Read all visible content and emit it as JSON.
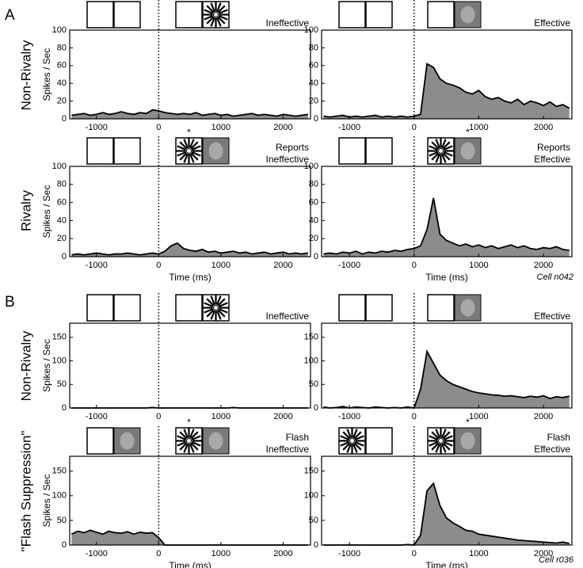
{
  "figure": {
    "sections": [
      {
        "label": "A",
        "rows": [
          "Non-Rivalry",
          "Rivalry"
        ],
        "cell": "Cell n042"
      },
      {
        "label": "B",
        "rows": [
          "Non-Rivalry",
          "\"Flash Suppression\""
        ],
        "cell": "Cell r036"
      }
    ]
  },
  "chart_data": [
    {
      "type": "area",
      "title_lines": [
        "Ineffective"
      ],
      "ylabel": "Spikes / Sec",
      "color": "#8c8c8c",
      "line_color": "#000000",
      "xlim": [
        -1430,
        2440
      ],
      "ylim": [
        0,
        100
      ],
      "xticks": [
        -1000,
        0,
        1000,
        2000
      ],
      "yticks": [
        0,
        20,
        40,
        60,
        80,
        100
      ],
      "x": [
        -1400,
        -1300,
        -1200,
        -1100,
        -1000,
        -900,
        -800,
        -700,
        -600,
        -500,
        -400,
        -300,
        -200,
        -100,
        0,
        100,
        200,
        300,
        400,
        500,
        600,
        700,
        800,
        900,
        1000,
        1100,
        1200,
        1300,
        1400,
        1500,
        1600,
        1700,
        1800,
        1900,
        2000,
        2100,
        2200,
        2300,
        2400
      ],
      "values": [
        4,
        5,
        6,
        4,
        5,
        7,
        5,
        6,
        8,
        6,
        5,
        7,
        6,
        10,
        9,
        7,
        6,
        5,
        6,
        5,
        7,
        4,
        5,
        6,
        4,
        5,
        3,
        4,
        5,
        6,
        4,
        5,
        4,
        3,
        5,
        4,
        3,
        4,
        5
      ]
    },
    {
      "type": "area",
      "title_lines": [
        "Effective"
      ],
      "color": "#8c8c8c",
      "line_color": "#000000",
      "xlim": [
        -1430,
        2440
      ],
      "ylim": [
        0,
        100
      ],
      "xticks": [
        -1000,
        0,
        1000,
        2000
      ],
      "yticks": [
        0,
        20,
        40,
        60,
        80,
        100
      ],
      "x": [
        -1400,
        -1300,
        -1200,
        -1100,
        -1000,
        -900,
        -800,
        -700,
        -600,
        -500,
        -400,
        -300,
        -200,
        -100,
        0,
        100,
        200,
        300,
        400,
        500,
        600,
        700,
        800,
        900,
        1000,
        1100,
        1200,
        1300,
        1400,
        1500,
        1600,
        1700,
        1800,
        1900,
        2000,
        2100,
        2200,
        2300,
        2400
      ],
      "values": [
        3,
        2,
        3,
        4,
        2,
        3,
        2,
        3,
        4,
        2,
        3,
        2,
        3,
        2,
        3,
        5,
        62,
        58,
        45,
        40,
        38,
        35,
        30,
        28,
        32,
        25,
        22,
        24,
        20,
        18,
        22,
        16,
        20,
        18,
        15,
        19,
        14,
        16,
        12
      ]
    },
    {
      "type": "area",
      "title_lines": [
        "Reports",
        "Ineffective"
      ],
      "ylabel": "Spikes / Sec",
      "xlabel": "Time (ms)",
      "star": "*",
      "color": "#8c8c8c",
      "line_color": "#000000",
      "xlim": [
        -1430,
        2440
      ],
      "ylim": [
        0,
        100
      ],
      "xticks": [
        -1000,
        0,
        1000,
        2000
      ],
      "yticks": [
        0,
        20,
        40,
        60,
        80,
        100
      ],
      "x": [
        -1400,
        -1300,
        -1200,
        -1100,
        -1000,
        -900,
        -800,
        -700,
        -600,
        -500,
        -400,
        -300,
        -200,
        -100,
        0,
        100,
        200,
        300,
        400,
        500,
        600,
        700,
        800,
        900,
        1000,
        1100,
        1200,
        1300,
        1400,
        1500,
        1600,
        1700,
        1800,
        1900,
        2000,
        2100,
        2200,
        2300,
        2400
      ],
      "values": [
        2,
        3,
        2,
        3,
        4,
        3,
        2,
        3,
        3,
        4,
        3,
        2,
        3,
        4,
        3,
        6,
        12,
        15,
        9,
        7,
        6,
        8,
        5,
        6,
        4,
        5,
        6,
        4,
        5,
        3,
        4,
        5,
        3,
        4,
        5,
        3,
        4,
        3,
        4
      ]
    },
    {
      "type": "area",
      "title_lines": [
        "Reports",
        "Effective"
      ],
      "xlabel": "Time (ms)",
      "star": "*",
      "color": "#8c8c8c",
      "line_color": "#000000",
      "xlim": [
        -1430,
        2440
      ],
      "ylim": [
        0,
        100
      ],
      "xticks": [
        -1000,
        0,
        1000,
        2000
      ],
      "yticks": [
        0,
        20,
        40,
        60,
        80,
        100
      ],
      "x": [
        -1400,
        -1300,
        -1200,
        -1100,
        -1000,
        -900,
        -800,
        -700,
        -600,
        -500,
        -400,
        -300,
        -200,
        -100,
        0,
        100,
        200,
        300,
        400,
        500,
        600,
        700,
        800,
        900,
        1000,
        1100,
        1200,
        1300,
        1400,
        1500,
        1600,
        1700,
        1800,
        1900,
        2000,
        2100,
        2200,
        2300,
        2400
      ],
      "values": [
        3,
        4,
        3,
        5,
        4,
        6,
        3,
        5,
        4,
        6,
        5,
        7,
        6,
        8,
        9,
        12,
        30,
        65,
        25,
        18,
        15,
        12,
        14,
        11,
        13,
        10,
        12,
        9,
        11,
        13,
        10,
        12,
        9,
        8,
        10,
        9,
        11,
        8,
        7
      ]
    },
    {
      "type": "area",
      "title_lines": [
        "Ineffective"
      ],
      "ylabel": "Spikes / Sec",
      "color": "#8c8c8c",
      "line_color": "#000000",
      "xlim": [
        -1430,
        2440
      ],
      "ylim": [
        0,
        180
      ],
      "xticks": [
        -1000,
        0,
        1000,
        2000
      ],
      "yticks": [
        0,
        50,
        100,
        150
      ],
      "x": [
        -1400,
        -1300,
        -1200,
        -1100,
        -1000,
        -900,
        -800,
        -700,
        -600,
        -500,
        -400,
        -300,
        -200,
        -100,
        0,
        100,
        200,
        300,
        400,
        500,
        600,
        700,
        800,
        900,
        1000,
        1100,
        1200,
        1300,
        1400,
        1500,
        1600,
        1700,
        1800,
        1900,
        2000,
        2100,
        2200,
        2300,
        2400
      ],
      "values": [
        0,
        0,
        0,
        0,
        0,
        0,
        0,
        0,
        0,
        0,
        0,
        0,
        0,
        1,
        0,
        0,
        0,
        0,
        0,
        0,
        0,
        0,
        0,
        0,
        0,
        0,
        1,
        0,
        0,
        0,
        0,
        0,
        0,
        0,
        0,
        0,
        0,
        0,
        0
      ]
    },
    {
      "type": "area",
      "title_lines": [
        "Effective"
      ],
      "color": "#8c8c8c",
      "line_color": "#000000",
      "xlim": [
        -1430,
        2440
      ],
      "ylim": [
        0,
        180
      ],
      "xticks": [
        -1000,
        0,
        1000,
        2000
      ],
      "yticks": [
        0,
        50,
        100,
        150
      ],
      "x": [
        -1400,
        -1300,
        -1200,
        -1100,
        -1000,
        -900,
        -800,
        -700,
        -600,
        -500,
        -400,
        -300,
        -200,
        -100,
        0,
        100,
        200,
        300,
        400,
        500,
        600,
        700,
        800,
        900,
        1000,
        1100,
        1200,
        1300,
        1400,
        1500,
        1600,
        1700,
        1800,
        1900,
        2000,
        2100,
        2200,
        2300,
        2400
      ],
      "values": [
        2,
        0,
        1,
        3,
        0,
        2,
        1,
        0,
        2,
        1,
        0,
        1,
        0,
        2,
        0,
        40,
        120,
        95,
        70,
        58,
        50,
        45,
        40,
        35,
        32,
        30,
        28,
        27,
        25,
        26,
        24,
        22,
        25,
        23,
        26,
        20,
        24,
        22,
        25
      ]
    },
    {
      "type": "area",
      "title_lines": [
        "Flash",
        "Ineffective"
      ],
      "ylabel": "Spikes / Sec",
      "xlabel": "Time (ms)",
      "star": "*",
      "color": "#8c8c8c",
      "line_color": "#000000",
      "xlim": [
        -1430,
        2440
      ],
      "ylim": [
        0,
        180
      ],
      "xticks": [
        -1000,
        0,
        1000,
        2000
      ],
      "yticks": [
        0,
        50,
        100,
        150
      ],
      "x": [
        -1400,
        -1300,
        -1200,
        -1100,
        -1000,
        -900,
        -800,
        -700,
        -600,
        -500,
        -400,
        -300,
        -200,
        -100,
        0,
        100,
        200,
        300,
        400,
        500,
        600,
        700,
        800,
        900,
        1000,
        1100,
        1200,
        1300,
        1400,
        1500,
        1600,
        1700,
        1800,
        1900,
        2000,
        2100,
        2200,
        2300,
        2400
      ],
      "values": [
        22,
        28,
        25,
        30,
        26,
        22,
        28,
        25,
        24,
        27,
        22,
        26,
        24,
        25,
        15,
        0,
        0,
        0,
        0,
        0,
        0,
        0,
        0,
        0,
        0,
        0,
        0,
        0,
        0,
        0,
        0,
        0,
        0,
        0,
        0,
        0,
        0,
        0,
        0
      ]
    },
    {
      "type": "area",
      "title_lines": [
        "Flash",
        "Effective"
      ],
      "xlabel": "Time (ms)",
      "star": "*",
      "color": "#8c8c8c",
      "line_color": "#000000",
      "xlim": [
        -1430,
        2440
      ],
      "ylim": [
        0,
        180
      ],
      "xticks": [
        -1000,
        0,
        1000,
        2000
      ],
      "yticks": [
        0,
        50,
        100,
        150
      ],
      "x": [
        -1400,
        -1300,
        -1200,
        -1100,
        -1000,
        -900,
        -800,
        -700,
        -600,
        -500,
        -400,
        -300,
        -200,
        -100,
        0,
        100,
        200,
        300,
        400,
        500,
        600,
        700,
        800,
        900,
        1000,
        1100,
        1200,
        1300,
        1400,
        1500,
        1600,
        1700,
        1800,
        1900,
        2000,
        2100,
        2200,
        2300,
        2400
      ],
      "values": [
        0,
        0,
        0,
        0,
        0,
        0,
        0,
        0,
        0,
        0,
        0,
        0,
        0,
        1,
        0,
        20,
        110,
        125,
        80,
        55,
        45,
        38,
        30,
        28,
        22,
        20,
        18,
        16,
        14,
        12,
        10,
        9,
        8,
        7,
        6,
        5,
        4,
        6,
        3
      ]
    }
  ]
}
